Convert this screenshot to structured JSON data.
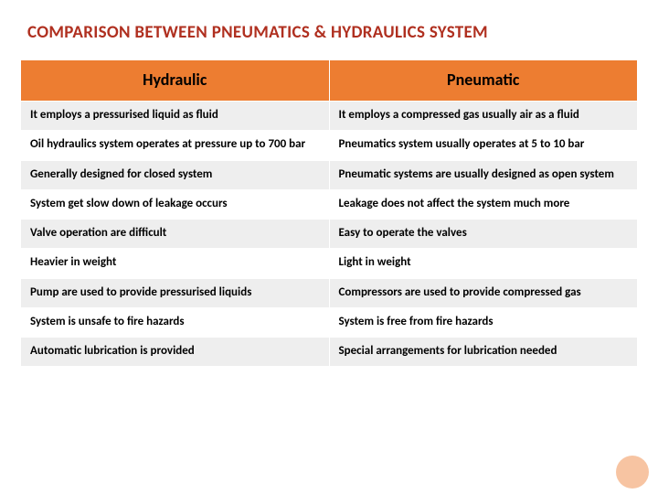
{
  "title": "COMPARISON BETWEEN PNEUMATICS & HYDRAULICS SYSTEM",
  "table": {
    "type": "table",
    "header_bg": "#ed7d31",
    "row_odd_bg": "#eeeeee",
    "row_even_bg": "#ffffff",
    "border_color": "#ffffff",
    "header_fontsize": 18,
    "cell_fontsize": 13,
    "title_color": "#b03020",
    "columns": [
      "Hydraulic",
      "Pneumatic"
    ],
    "rows": [
      [
        "It employs a pressurised liquid as fluid",
        "It employs a compressed gas usually air as a fluid"
      ],
      [
        "Oil hydraulics system operates at pressure up to 700 bar",
        "Pneumatics system usually operates at 5 to 10 bar"
      ],
      [
        "Generally designed for closed system",
        "Pneumatic systems are usually designed as open system"
      ],
      [
        "System get slow down of leakage occurs",
        "Leakage does not affect the system much more"
      ],
      [
        "Valve operation are difficult",
        "Easy to operate the valves"
      ],
      [
        "Heavier in weight",
        "Light in weight"
      ],
      [
        "Pump are used to provide pressurised liquids",
        "Compressors are used to provide compressed gas"
      ],
      [
        "System is unsafe to fire hazards",
        "System is free from fire hazards"
      ],
      [
        "Automatic lubrication is provided",
        "Special arrangements for lubrication needed"
      ]
    ]
  },
  "accent_circle_color": "#f4b083"
}
